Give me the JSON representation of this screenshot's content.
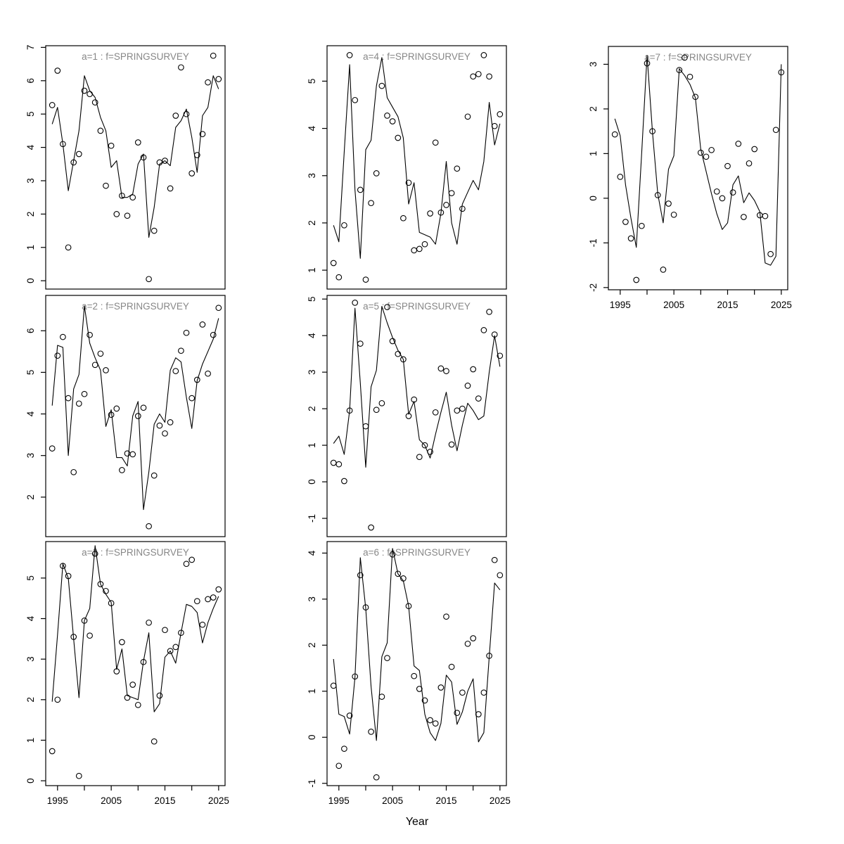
{
  "chart_data": {
    "type": "line",
    "description": "3x3 grid of 7 small-multiple panels; each panel shows a fitted black line and open-circle observed points over years",
    "xlabel": "Year",
    "x": [
      1994,
      1995,
      1996,
      1997,
      1998,
      1999,
      2000,
      2001,
      2002,
      2003,
      2004,
      2005,
      2006,
      2007,
      2008,
      2009,
      2010,
      2011,
      2012,
      2013,
      2014,
      2015,
      2016,
      2017,
      2018,
      2019,
      2020,
      2021,
      2022,
      2023,
      2024,
      2025
    ],
    "xlim": [
      1992.8,
      2026.2
    ],
    "x_ticks": [
      1995,
      2000,
      2005,
      2010,
      2015,
      2020,
      2025
    ],
    "x_labeled_ticks": [
      1995,
      2005,
      2015,
      2025
    ],
    "grid": false,
    "legend": "none",
    "title_color": "#878787",
    "line_color": "#000000",
    "point_color": "#000000",
    "panels": [
      {
        "a": 1,
        "title": "a=1 : f=SPRINGSURVEY",
        "grid_pos": {
          "row": 0,
          "col": 0
        },
        "x_axis": false,
        "ylim": [
          -0.25,
          7.05
        ],
        "yticks": [
          0,
          1,
          2,
          3,
          4,
          5,
          6,
          7
        ],
        "line": [
          4.7,
          5.2,
          4.1,
          2.7,
          3.6,
          4.5,
          6.15,
          5.7,
          5.5,
          4.9,
          4.5,
          3.4,
          3.6,
          2.5,
          2.5,
          2.6,
          3.5,
          3.8,
          1.3,
          2.2,
          3.5,
          3.6,
          3.45,
          4.6,
          4.8,
          5.15,
          4.3,
          3.25,
          4.95,
          5.2,
          6.15,
          5.75
        ],
        "points": [
          5.27,
          6.3,
          4.1,
          1.0,
          3.55,
          3.8,
          5.7,
          5.6,
          5.35,
          4.5,
          2.85,
          4.05,
          2.0,
          2.55,
          1.95,
          2.5,
          4.15,
          3.7,
          0.05,
          1.5,
          3.55,
          3.6,
          2.77,
          4.95,
          6.4,
          5.0,
          3.22,
          3.77,
          4.4,
          5.95,
          6.75,
          6.05
        ]
      },
      {
        "a": 2,
        "title": "a=2 : f=SPRINGSURVEY",
        "grid_pos": {
          "row": 1,
          "col": 0
        },
        "x_axis": false,
        "ylim": [
          1.05,
          6.85
        ],
        "yticks": [
          2,
          3,
          4,
          5,
          6
        ],
        "line": [
          4.2,
          5.65,
          5.6,
          3.0,
          4.6,
          4.95,
          6.6,
          5.7,
          5.35,
          5.05,
          3.7,
          4.1,
          2.95,
          2.95,
          2.75,
          3.95,
          4.3,
          1.7,
          2.6,
          3.75,
          4.0,
          3.8,
          5.05,
          5.35,
          5.25,
          4.4,
          3.65,
          4.8,
          5.2,
          5.5,
          5.8,
          6.3
        ],
        "points": [
          3.17,
          5.4,
          5.85,
          4.38,
          2.6,
          4.25,
          4.48,
          5.9,
          5.18,
          5.45,
          5.05,
          3.98,
          4.13,
          2.65,
          3.05,
          3.03,
          3.95,
          4.15,
          1.3,
          2.52,
          3.72,
          3.53,
          3.8,
          5.03,
          5.52,
          5.95,
          4.38,
          4.82,
          6.15,
          4.97,
          5.9,
          6.55
        ]
      },
      {
        "a": 3,
        "title": "a=3 : f=SPRINGSURVEY",
        "grid_pos": {
          "row": 2,
          "col": 0
        },
        "x_axis": true,
        "ylim": [
          -0.12,
          5.9
        ],
        "yticks": [
          0,
          1,
          2,
          3,
          4,
          5
        ],
        "line": [
          1.95,
          3.6,
          5.35,
          5.0,
          3.5,
          2.05,
          3.95,
          4.25,
          5.8,
          4.85,
          4.6,
          4.4,
          2.75,
          3.25,
          2.1,
          2.05,
          2.0,
          2.95,
          3.65,
          1.7,
          1.9,
          3.05,
          3.2,
          2.9,
          3.65,
          4.35,
          4.3,
          4.15,
          3.4,
          3.9,
          4.25,
          4.55
        ],
        "points": [
          0.73,
          2.0,
          5.3,
          5.05,
          3.55,
          0.12,
          3.95,
          3.58,
          5.6,
          4.85,
          4.68,
          4.38,
          2.7,
          3.42,
          2.05,
          2.37,
          1.87,
          2.93,
          3.9,
          0.97,
          2.1,
          3.72,
          3.2,
          3.3,
          3.65,
          5.35,
          5.45,
          4.43,
          3.85,
          4.48,
          4.52,
          4.72
        ]
      },
      {
        "a": 4,
        "title": "a=4 : f=SPRINGSURVEY",
        "grid_pos": {
          "row": 0,
          "col": 1
        },
        "x_axis": false,
        "ylim": [
          0.6,
          5.75
        ],
        "yticks": [
          1,
          2,
          3,
          4,
          5
        ],
        "line": [
          1.95,
          1.6,
          3.5,
          5.35,
          2.7,
          1.25,
          3.55,
          3.75,
          4.9,
          5.5,
          4.65,
          4.45,
          4.25,
          3.8,
          2.4,
          2.85,
          1.8,
          1.75,
          1.7,
          1.55,
          2.2,
          3.3,
          2.0,
          1.55,
          2.4,
          2.65,
          2.9,
          2.7,
          3.3,
          4.55,
          3.65,
          4.1
        ],
        "points": [
          1.15,
          0.85,
          1.95,
          5.55,
          4.6,
          2.7,
          0.8,
          2.42,
          3.05,
          4.9,
          4.27,
          4.15,
          3.8,
          2.1,
          2.85,
          1.42,
          1.45,
          1.55,
          2.2,
          3.7,
          2.22,
          2.38,
          2.63,
          3.15,
          2.3,
          4.25,
          5.1,
          5.15,
          5.55,
          5.1,
          4.05,
          4.3
        ]
      },
      {
        "a": 5,
        "title": "a=5 : f=SPRINGSURVEY",
        "grid_pos": {
          "row": 1,
          "col": 1
        },
        "x_axis": false,
        "ylim": [
          -1.5,
          5.1
        ],
        "yticks": [
          -1,
          0,
          1,
          2,
          3,
          4,
          5
        ],
        "line": [
          1.05,
          1.25,
          0.75,
          1.95,
          4.75,
          2.7,
          0.4,
          2.6,
          3.05,
          4.8,
          4.35,
          3.95,
          3.6,
          3.35,
          1.85,
          2.2,
          1.15,
          1.0,
          0.65,
          1.3,
          1.9,
          2.45,
          1.55,
          0.85,
          1.55,
          2.15,
          1.95,
          1.7,
          1.8,
          3.0,
          4.0,
          3.15
        ],
        "points": [
          0.52,
          0.48,
          0.02,
          1.95,
          4.9,
          3.78,
          1.52,
          -1.25,
          1.97,
          2.15,
          4.78,
          3.85,
          3.5,
          3.35,
          1.8,
          2.25,
          0.68,
          1.0,
          0.82,
          1.9,
          3.1,
          3.03,
          1.02,
          1.95,
          2.0,
          2.63,
          3.08,
          2.28,
          4.15,
          4.65,
          4.03,
          3.45
        ]
      },
      {
        "a": 6,
        "title": "a=6 : f=SPRINGSURVEY",
        "grid_pos": {
          "row": 2,
          "col": 1
        },
        "x_axis": true,
        "ylim": [
          -1.05,
          4.25
        ],
        "yticks": [
          -1,
          0,
          1,
          2,
          3,
          4
        ],
        "line": [
          1.7,
          0.5,
          0.45,
          0.07,
          1.3,
          3.9,
          2.8,
          1.1,
          -0.07,
          1.75,
          2.05,
          4.1,
          3.55,
          3.4,
          2.85,
          1.55,
          1.45,
          0.5,
          0.1,
          -0.07,
          0.3,
          1.35,
          1.2,
          0.28,
          0.55,
          1.0,
          1.27,
          -0.1,
          0.1,
          1.75,
          3.35,
          3.2
        ],
        "points": [
          1.12,
          -0.62,
          -0.25,
          0.47,
          1.32,
          3.52,
          2.82,
          0.12,
          -0.87,
          0.88,
          1.72,
          3.97,
          3.55,
          3.45,
          2.85,
          1.33,
          1.05,
          0.8,
          0.37,
          0.3,
          1.08,
          2.62,
          1.53,
          0.53,
          0.97,
          2.03,
          2.15,
          0.5,
          0.97,
          1.77,
          3.85,
          3.52
        ]
      },
      {
        "a": 7,
        "title": "a=7 : f=SPRINGSURVEY",
        "grid_pos": {
          "row": 0,
          "col": 2
        },
        "x_axis": true,
        "ylim": [
          -2.05,
          3.4
        ],
        "yticks": [
          -2,
          -1,
          0,
          1,
          2,
          3
        ],
        "line": [
          1.78,
          1.4,
          0.3,
          -0.45,
          -1.1,
          1.0,
          3.2,
          1.5,
          0.1,
          -0.55,
          0.65,
          0.95,
          2.9,
          2.75,
          2.55,
          2.25,
          1.1,
          0.6,
          0.1,
          -0.35,
          -0.7,
          -0.55,
          0.3,
          0.5,
          -0.1,
          0.12,
          -0.05,
          -0.3,
          -1.45,
          -1.5,
          -1.3,
          3.0
        ],
        "points": [
          1.43,
          0.48,
          -0.53,
          -0.9,
          -1.83,
          -0.62,
          3.02,
          1.5,
          0.07,
          -1.6,
          -0.12,
          -0.37,
          2.87,
          3.15,
          2.72,
          2.27,
          1.02,
          0.93,
          1.08,
          0.15,
          0.0,
          0.72,
          0.13,
          1.22,
          -0.42,
          0.78,
          1.1,
          -0.38,
          -0.4,
          -1.25,
          1.53,
          2.82
        ]
      }
    ]
  }
}
